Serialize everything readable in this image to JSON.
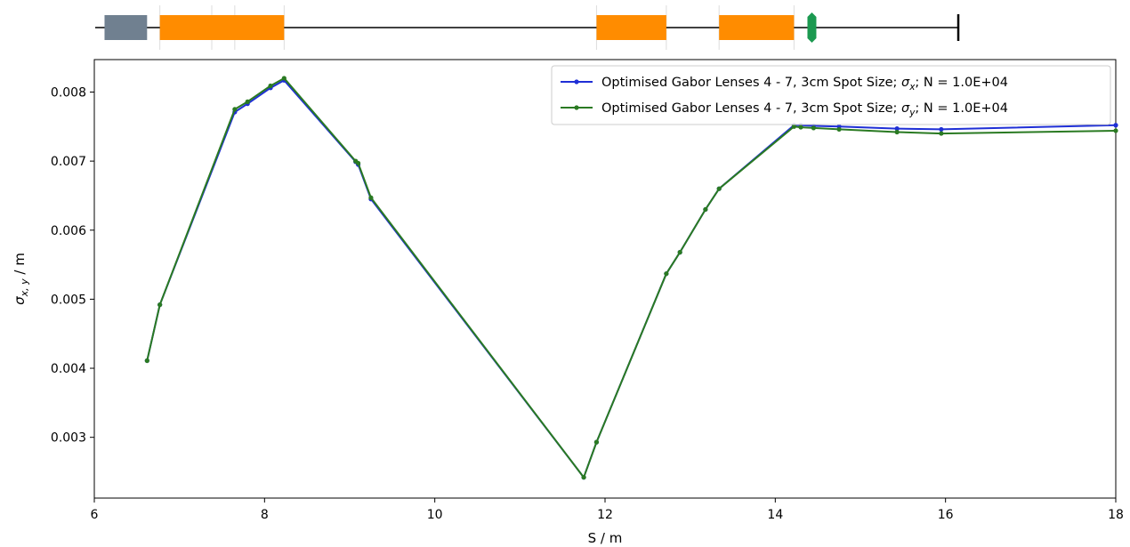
{
  "chart_data": {
    "type": "line",
    "xlabel": "S / m",
    "ylabel_main": "σ",
    "ylabel_sub": "x, y",
    "ylabel_tail": " / m",
    "xlim": [
      6,
      18
    ],
    "ylim": [
      0.00212,
      0.00847
    ],
    "xticks": [
      6,
      8,
      10,
      12,
      14,
      16,
      18
    ],
    "xtick_labels": [
      "6",
      "8",
      "10",
      "12",
      "14",
      "16",
      "18"
    ],
    "yticks": [
      0.003,
      0.004,
      0.005,
      0.006,
      0.007,
      0.008
    ],
    "ytick_labels": [
      "0.003",
      "0.004",
      "0.005",
      "0.006",
      "0.007",
      "0.008"
    ],
    "grid": false,
    "legend_position": "top-right",
    "series": [
      {
        "legend_prefix": "Optimised Gabor Lenses 4 - 7, 3cm Spot Size; ",
        "legend_symbol": "σ",
        "legend_sub": "x",
        "legend_suffix": "; N = 1.0E+04",
        "color": "#1f2fd6",
        "x": [
          6.62,
          6.77,
          7.65,
          7.8,
          8.07,
          8.23,
          9.07,
          9.1,
          9.25,
          11.75,
          11.9,
          12.72,
          12.88,
          13.18,
          13.34,
          14.22,
          14.3,
          14.45,
          14.75,
          15.43,
          15.95,
          18.0
        ],
        "y": [
          0.00411,
          0.00492,
          0.00771,
          0.00783,
          0.00806,
          0.00817,
          0.00699,
          0.00695,
          0.00645,
          0.00242,
          0.00293,
          0.00537,
          0.00568,
          0.0063,
          0.0066,
          0.00752,
          0.00752,
          0.00751,
          0.0075,
          0.00747,
          0.00746,
          0.00752
        ]
      },
      {
        "legend_prefix": "Optimised Gabor Lenses 4 - 7, 3cm Spot Size; ",
        "legend_symbol": "σ",
        "legend_sub": "y",
        "legend_suffix": "; N = 1.0E+04",
        "color": "#2a7a22",
        "x": [
          6.62,
          6.77,
          7.65,
          7.8,
          8.07,
          8.23,
          9.07,
          9.1,
          9.25,
          11.75,
          11.9,
          12.72,
          12.88,
          13.18,
          13.34,
          14.22,
          14.3,
          14.45,
          14.75,
          15.43,
          15.95,
          18.0
        ],
        "y": [
          0.00411,
          0.00492,
          0.00775,
          0.00786,
          0.00809,
          0.0082,
          0.007,
          0.00697,
          0.00647,
          0.00242,
          0.00293,
          0.00537,
          0.00568,
          0.0063,
          0.0066,
          0.0075,
          0.00749,
          0.00748,
          0.00746,
          0.00742,
          0.0074,
          0.00744
        ]
      }
    ],
    "beamline": {
      "line_color": "#000000",
      "elements": [
        {
          "type": "drift-block",
          "s_start": 6.12,
          "s_end": 6.62,
          "color": "#708090"
        },
        {
          "type": "gabor-lens",
          "s_start": 6.77,
          "s_end": 7.65,
          "color": "#ff8c00"
        },
        {
          "type": "gabor-lens",
          "s_start": 7.38,
          "s_end": 8.23,
          "color": "#ff8c00"
        },
        {
          "type": "gabor-lens",
          "s_start": 11.9,
          "s_end": 12.72,
          "color": "#ff8c00"
        },
        {
          "type": "gabor-lens",
          "s_start": 13.34,
          "s_end": 14.22,
          "color": "#ff8c00"
        },
        {
          "type": "marker",
          "s": 14.43,
          "color": "#1b9950"
        },
        {
          "type": "end-stop",
          "s": 16.15,
          "color": "#000000"
        }
      ]
    }
  }
}
